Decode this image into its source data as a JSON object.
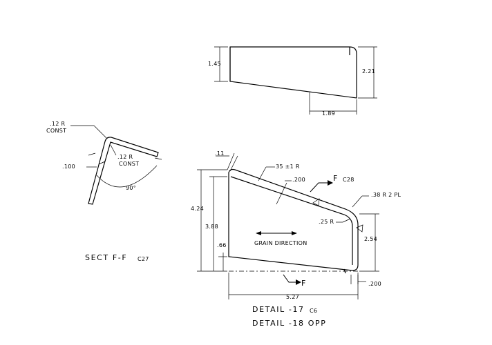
{
  "top_view": {
    "dim_left": "1.45",
    "dim_right": "2.21",
    "dim_bottom": "1.89"
  },
  "section": {
    "r_outer_1": ".12 R",
    "r_outer_2": "CONST",
    "r_inner_1": ".12 R",
    "r_inner_2": "CONST",
    "thickness": ".100",
    "angle": "90°",
    "title": "SECT F-F",
    "title_sub": "C27"
  },
  "detail_view": {
    "dim_top_left": ".11",
    "radius_top": "35 ±1 R",
    "flange_width": ".200",
    "section_label": "F",
    "section_sub": "C28",
    "corner_radius": ".38 R 2 PL",
    "inner_radius": ".25 R",
    "height_total": "4.24",
    "height_inner": "3.88",
    "height_low": ".66",
    "grain": "GRAIN DIRECTION",
    "height_right": "2.54",
    "bottom_flange": ".200",
    "section_label_bottom": "F",
    "width": "5.27",
    "detail_title_1": "DETAIL -17",
    "detail_sub_1": "C6",
    "detail_title_2": "DETAIL -18 OPP"
  }
}
